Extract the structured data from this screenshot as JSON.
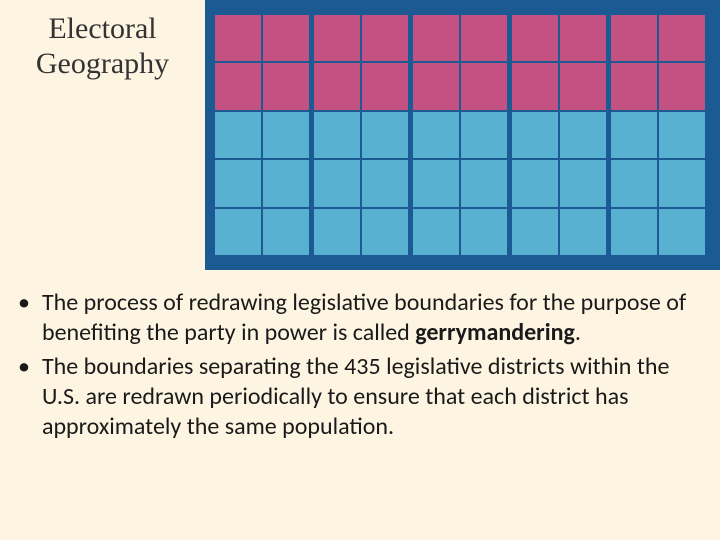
{
  "title": "Electoral Geography",
  "grid": {
    "districts": 5,
    "cols_per_district": 2,
    "rows": 5,
    "pink_rows": 2,
    "blue_rows": 3,
    "colors": {
      "pink": "#c35182",
      "blue": "#58b1d0",
      "background": "#1b5a93",
      "district_gap": 5,
      "cell_gap": 2
    }
  },
  "bullets": [
    {
      "text_before": "The process of redrawing legislative boundaries for the purpose of benefiting the party in power is called ",
      "bold_text": "gerrymandering",
      "text_after": "."
    },
    {
      "text_before": "The boundaries separating the 435 legislative districts within the U.S. are redrawn periodically to ensure that each district has approximately the same population.",
      "bold_text": "",
      "text_after": ""
    }
  ],
  "styling": {
    "slide_bg": "#fdf5e2",
    "title_font": "Georgia",
    "title_size": 30,
    "body_size": 24
  }
}
